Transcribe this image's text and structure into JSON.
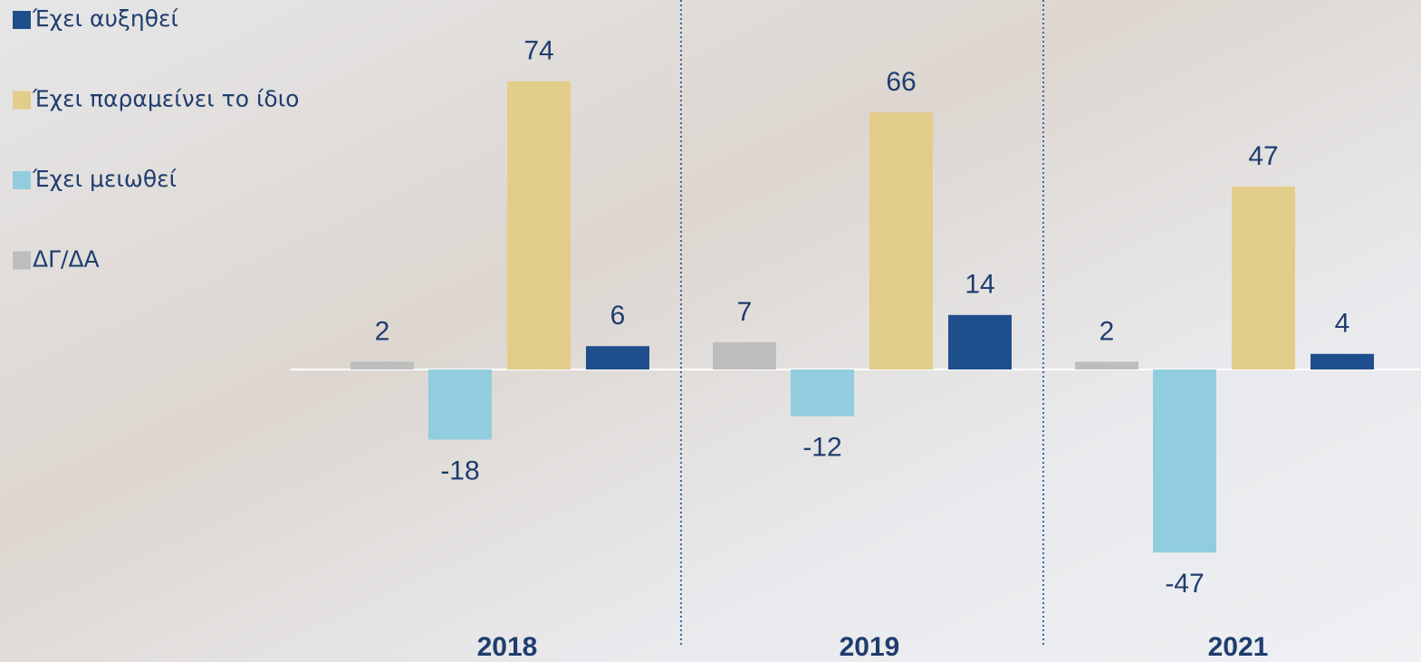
{
  "chart_data": {
    "type": "bar",
    "categories": [
      "2018",
      "2019",
      "2021"
    ],
    "series": [
      {
        "name": "Έχει αυξηθεί",
        "color": "#1f4e8c",
        "values": [
          6,
          14,
          4
        ]
      },
      {
        "name": "Έχει παραμείνει το ίδιο",
        "color": "#e2cd8a",
        "values": [
          74,
          66,
          47
        ]
      },
      {
        "name": "Έχει μειωθεί",
        "color": "#92cddf",
        "values": [
          -18,
          -12,
          -47
        ]
      },
      {
        "name": "ΔΓ/ΔΑ",
        "color": "#bdbdbd",
        "values": [
          2,
          7,
          2
        ]
      }
    ]
  }
}
